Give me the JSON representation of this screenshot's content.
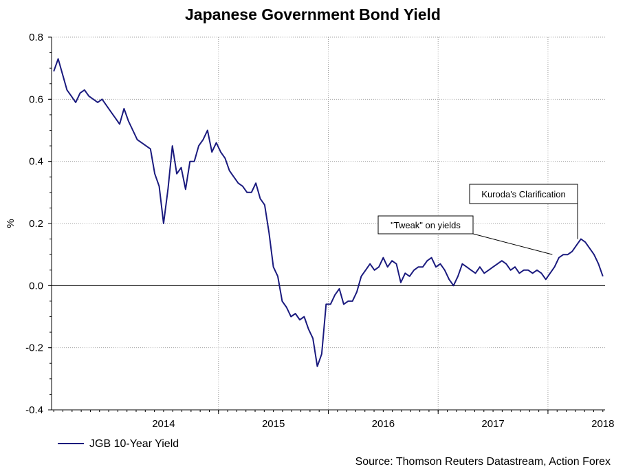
{
  "chart_data": {
    "type": "line",
    "title": "Japanese Government Bond Yield",
    "ylabel": "%",
    "xlabel": "",
    "ylim": [
      -0.4,
      0.8
    ],
    "yticks": [
      "0.8",
      "0.6",
      "0.4",
      "0.2",
      "0.0",
      "-0.2",
      "-0.4"
    ],
    "xticks": [
      "2014",
      "2015",
      "2016",
      "2017",
      "2018"
    ],
    "grid": true,
    "legend_position": "bottom-left",
    "colors": {
      "line": "#1a1a7e",
      "zero_line": "#000000",
      "grid": "#a0a0a0"
    },
    "series": [
      {
        "name": "JGB 10-Year Yield",
        "x": [
          2013.5,
          2013.54,
          2013.58,
          2013.62,
          2013.66,
          2013.7,
          2013.74,
          2013.78,
          2013.82,
          2013.86,
          2013.9,
          2013.94,
          2013.98,
          2014.02,
          2014.06,
          2014.1,
          2014.14,
          2014.18,
          2014.22,
          2014.26,
          2014.3,
          2014.34,
          2014.38,
          2014.42,
          2014.46,
          2014.5,
          2014.54,
          2014.58,
          2014.62,
          2014.66,
          2014.7,
          2014.74,
          2014.78,
          2014.82,
          2014.86,
          2014.9,
          2014.94,
          2014.98,
          2015.02,
          2015.06,
          2015.1,
          2015.14,
          2015.18,
          2015.22,
          2015.26,
          2015.3,
          2015.34,
          2015.38,
          2015.42,
          2015.46,
          2015.5,
          2015.54,
          2015.58,
          2015.62,
          2015.66,
          2015.7,
          2015.74,
          2015.78,
          2015.82,
          2015.86,
          2015.9,
          2015.94,
          2015.98,
          2016.02,
          2016.06,
          2016.1,
          2016.14,
          2016.18,
          2016.22,
          2016.26,
          2016.3,
          2016.34,
          2016.38,
          2016.42,
          2016.46,
          2016.5,
          2016.54,
          2016.58,
          2016.62,
          2016.66,
          2016.7,
          2016.74,
          2016.78,
          2016.82,
          2016.86,
          2016.9,
          2016.94,
          2016.98,
          2017.02,
          2017.06,
          2017.1,
          2017.14,
          2017.18,
          2017.22,
          2017.26,
          2017.3,
          2017.34,
          2017.38,
          2017.42,
          2017.46,
          2017.5,
          2017.54,
          2017.58,
          2017.62,
          2017.66,
          2017.7,
          2017.74,
          2017.78,
          2017.82,
          2017.86,
          2017.9,
          2017.94,
          2017.98,
          2018.02,
          2018.06,
          2018.1,
          2018.14,
          2018.18,
          2018.22,
          2018.26,
          2018.3,
          2018.34,
          2018.38,
          2018.42,
          2018.46,
          2018.5
        ],
        "y": [
          0.69,
          0.73,
          0.68,
          0.63,
          0.61,
          0.59,
          0.62,
          0.63,
          0.61,
          0.6,
          0.59,
          0.6,
          0.58,
          0.56,
          0.54,
          0.52,
          0.57,
          0.53,
          0.5,
          0.47,
          0.46,
          0.45,
          0.44,
          0.36,
          0.32,
          0.2,
          0.31,
          0.45,
          0.36,
          0.38,
          0.31,
          0.4,
          0.4,
          0.45,
          0.47,
          0.5,
          0.43,
          0.46,
          0.43,
          0.41,
          0.37,
          0.35,
          0.33,
          0.32,
          0.3,
          0.3,
          0.33,
          0.28,
          0.26,
          0.17,
          0.06,
          0.03,
          -0.05,
          -0.07,
          -0.1,
          -0.09,
          -0.11,
          -0.1,
          -0.14,
          -0.17,
          -0.26,
          -0.22,
          -0.06,
          -0.06,
          -0.03,
          -0.01,
          -0.06,
          -0.05,
          -0.05,
          -0.02,
          0.03,
          0.05,
          0.07,
          0.05,
          0.06,
          0.09,
          0.06,
          0.08,
          0.07,
          0.01,
          0.04,
          0.03,
          0.05,
          0.06,
          0.06,
          0.08,
          0.09,
          0.06,
          0.07,
          0.05,
          0.02,
          0.0,
          0.03,
          0.07,
          0.06,
          0.05,
          0.04,
          0.06,
          0.04,
          0.05,
          0.06,
          0.07,
          0.08,
          0.07,
          0.05,
          0.06,
          0.04,
          0.05,
          0.05,
          0.04,
          0.05,
          0.04,
          0.02,
          0.04,
          0.06,
          0.09,
          0.1,
          0.1,
          0.11,
          0.13,
          0.15,
          0.14,
          0.12,
          0.1,
          0.07,
          0.03
        ]
      }
    ],
    "annotations": [
      {
        "text": "\"Tweak\" on yields",
        "x": 2018.04,
        "y": 0.1
      },
      {
        "text": "Kuroda's Clarification",
        "x": 2018.27,
        "y": 0.15
      }
    ]
  },
  "source_note": "Source: Thomson Reuters Datastream, Action Forex"
}
